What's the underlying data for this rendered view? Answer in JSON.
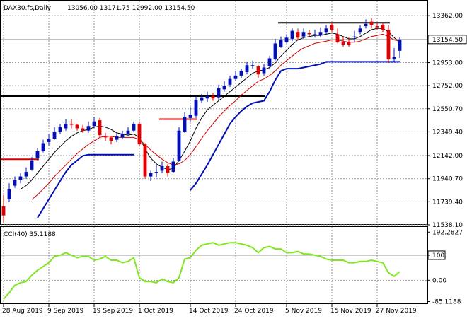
{
  "header": {
    "symbol": "DAX30.fs,Daily",
    "ohlc": "13056.00 13171.75 12992.00 13154.50"
  },
  "chart_data": [
    {
      "type": "candlestick",
      "name": "DAX30.fs,Daily",
      "ylim": [
        11538.1,
        13400
      ],
      "ytick_labels": [
        "13362.00",
        "13154.50",
        "12953.00",
        "12752.00",
        "12550.70",
        "12349.40",
        "12142.00",
        "11940.70",
        "11739.40",
        "11538.10"
      ],
      "yticks": [
        13362.0,
        13154.5,
        12953.0,
        12752.0,
        12550.7,
        12349.4,
        12142.0,
        11940.7,
        11739.4,
        11538.1
      ],
      "current_price": 13154.5,
      "current_price_label": "13154.50",
      "x": [
        "2019-08-28",
        "2019-08-29",
        "2019-08-30",
        "2019-09-02",
        "2019-09-03",
        "2019-09-04",
        "2019-09-05",
        "2019-09-06",
        "2019-09-09",
        "2019-09-10",
        "2019-09-11",
        "2019-09-12",
        "2019-09-13",
        "2019-09-16",
        "2019-09-17",
        "2019-09-18",
        "2019-09-19",
        "2019-09-20",
        "2019-09-23",
        "2019-09-24",
        "2019-09-25",
        "2019-09-26",
        "2019-09-27",
        "2019-09-30",
        "2019-10-01",
        "2019-10-02",
        "2019-10-03",
        "2019-10-04",
        "2019-10-07",
        "2019-10-08",
        "2019-10-09",
        "2019-10-10",
        "2019-10-11",
        "2019-10-14",
        "2019-10-15",
        "2019-10-16",
        "2019-10-17",
        "2019-10-18",
        "2019-10-21",
        "2019-10-22",
        "2019-10-23",
        "2019-10-24",
        "2019-10-25",
        "2019-10-28",
        "2019-10-29",
        "2019-10-30",
        "2019-10-31",
        "2019-11-01",
        "2019-11-04",
        "2019-11-05",
        "2019-11-06",
        "2019-11-07",
        "2019-11-08",
        "2019-11-11",
        "2019-11-12",
        "2019-11-13",
        "2019-11-14",
        "2019-11-15",
        "2019-11-18",
        "2019-11-19",
        "2019-11-20",
        "2019-11-21",
        "2019-11-22",
        "2019-11-25",
        "2019-11-26",
        "2019-11-27",
        "2019-11-28",
        "2019-11-29",
        "2019-12-02",
        "2019-12-03",
        "2019-12-04"
      ],
      "open": [
        11700,
        11760,
        11880,
        11930,
        11960,
        12020,
        12120,
        12180,
        12260,
        12290,
        12350,
        12380,
        12420,
        12410,
        12380,
        12360,
        12400,
        12450,
        12310,
        12300,
        12280,
        12300,
        12330,
        12360,
        12420,
        12240,
        11960,
        11990,
        12010,
        12050,
        12000,
        12100,
        12350,
        12470,
        12490,
        12620,
        12640,
        12660,
        12650,
        12720,
        12760,
        12810,
        12840,
        12870,
        12930,
        12920,
        12860,
        12920,
        12980,
        13090,
        13130,
        13160,
        13220,
        13180,
        13210,
        13200,
        13190,
        13220,
        13280,
        13200,
        13130,
        13130,
        13180,
        13220,
        13270,
        13310,
        13270,
        13280,
        13240,
        12980,
        13056
      ],
      "close": [
        11620,
        11850,
        11930,
        11960,
        12000,
        12100,
        12180,
        12250,
        12290,
        12350,
        12390,
        12420,
        12410,
        12380,
        12360,
        12400,
        12440,
        12320,
        12300,
        12270,
        12310,
        12330,
        12360,
        12420,
        12240,
        11960,
        11990,
        12000,
        12050,
        11990,
        12090,
        12360,
        12480,
        12500,
        12630,
        12650,
        12660,
        12640,
        12730,
        12750,
        12810,
        12840,
        12880,
        12930,
        12930,
        12850,
        12910,
        12990,
        13120,
        13150,
        13170,
        13230,
        13170,
        13220,
        13200,
        13200,
        13220,
        13250,
        13240,
        13130,
        13110,
        13110,
        13180,
        13250,
        13290,
        13280,
        13260,
        13240,
        12980,
        13000,
        13154
      ],
      "high": [
        11800,
        11900,
        11960,
        11990,
        12040,
        12130,
        12210,
        12280,
        12330,
        12390,
        12420,
        12460,
        12460,
        12420,
        12410,
        12440,
        12480,
        12470,
        12340,
        12310,
        12340,
        12360,
        12390,
        12440,
        12440,
        12250,
        12010,
        12060,
        12090,
        12070,
        12120,
        12390,
        12520,
        12560,
        12660,
        12680,
        12700,
        12690,
        12760,
        12790,
        12840,
        12880,
        12900,
        12960,
        12970,
        12930,
        12940,
        13010,
        13160,
        13180,
        13200,
        13250,
        13250,
        13250,
        13240,
        13240,
        13260,
        13280,
        13310,
        13250,
        13180,
        13170,
        13230,
        13280,
        13330,
        13340,
        13300,
        13300,
        13280,
        13080,
        13171
      ],
      "low": [
        11560,
        11740,
        11860,
        11900,
        11940,
        12010,
        12100,
        12170,
        12230,
        12280,
        12330,
        12360,
        12380,
        12360,
        12340,
        12340,
        12380,
        12300,
        12270,
        12240,
        12260,
        12290,
        12320,
        12350,
        12220,
        11940,
        11920,
        11950,
        11990,
        11960,
        11990,
        12090,
        12340,
        12440,
        12470,
        12600,
        12610,
        12620,
        12630,
        12700,
        12740,
        12790,
        12820,
        12850,
        12900,
        12820,
        12840,
        12900,
        12970,
        13080,
        13120,
        13140,
        13150,
        13160,
        13180,
        13170,
        13170,
        13200,
        13220,
        13120,
        13090,
        13090,
        13130,
        13200,
        13250,
        13250,
        13240,
        13220,
        12950,
        12960,
        12992
      ],
      "xtick_labels": [
        "28 Aug 2019",
        "9 Sep 2019",
        "19 Sep 2019",
        "1 Oct 2019",
        "14 Oct 2019",
        "24 Oct 2019",
        "5 Nov 2019",
        "15 Nov 2019",
        "27 Nov 2019"
      ],
      "xtick_index": [
        0,
        8,
        16,
        24,
        33,
        41,
        50,
        58,
        66
      ],
      "series": [
        {
          "kind": "ma_fast",
          "color": "#000000",
          "values": [
            null,
            null,
            null,
            11850,
            11880,
            11930,
            11990,
            12050,
            12110,
            12170,
            12220,
            12270,
            12310,
            12340,
            12360,
            12370,
            12390,
            12400,
            12390,
            12370,
            12340,
            12330,
            12320,
            12330,
            12300,
            12200,
            12120,
            12070,
            12040,
            12020,
            12030,
            12100,
            12180,
            12270,
            12380,
            12470,
            12540,
            12580,
            12620,
            12660,
            12700,
            12740,
            12780,
            12820,
            12860,
            12880,
            12890,
            12910,
            12950,
            13010,
            13060,
            13110,
            13150,
            13170,
            13180,
            13190,
            13190,
            13200,
            13210,
            13200,
            13180,
            13160,
            13160,
            13180,
            13210,
            13240,
            13250,
            13250,
            13220,
            13170,
            13130
          ]
        },
        {
          "kind": "ma_slow",
          "color": "#d40000",
          "values": [
            null,
            null,
            null,
            null,
            null,
            11760,
            11800,
            11850,
            11900,
            11960,
            12010,
            12060,
            12110,
            12160,
            12200,
            12240,
            12270,
            12300,
            12310,
            12310,
            12300,
            12300,
            12300,
            12300,
            12280,
            12240,
            12190,
            12150,
            12110,
            12080,
            12060,
            12070,
            12100,
            12150,
            12220,
            12290,
            12360,
            12420,
            12480,
            12530,
            12580,
            12620,
            12670,
            12710,
            12750,
            12790,
            12810,
            12840,
            12880,
            12930,
            12970,
            13010,
            13050,
            13080,
            13100,
            13120,
            13130,
            13140,
            13150,
            13150,
            13140,
            13130,
            13130,
            13140,
            13160,
            13180,
            13190,
            13200,
            13180,
            13150,
            13140
          ]
        },
        {
          "kind": "channel",
          "color": "#0010b4",
          "values": [
            null,
            null,
            null,
            null,
            null,
            null,
            11600,
            11680,
            11760,
            11840,
            11920,
            12000,
            12060,
            12100,
            12140,
            12150,
            12150,
            12150,
            12150,
            12150,
            12150,
            12150,
            12150,
            12150,
            null,
            null,
            null,
            null,
            null,
            null,
            null,
            null,
            null,
            11840,
            11900,
            11980,
            12060,
            12150,
            12240,
            12330,
            12420,
            12480,
            12530,
            12570,
            12600,
            12610,
            12620,
            12700,
            12800,
            12880,
            12900,
            12900,
            12900,
            12910,
            12920,
            12930,
            12940,
            12960,
            12960,
            12960,
            12960,
            12960,
            12960,
            12960,
            12960,
            12960,
            12960,
            12960,
            12960,
            12960,
            12960
          ]
        }
      ],
      "annotations": [
        {
          "kind": "hline",
          "color": "#000000",
          "value": 12660,
          "x_from": 0,
          "x_to": 46
        },
        {
          "kind": "hline",
          "color": "#000000",
          "value": 13300,
          "x_from": 49,
          "x_to": 68
        },
        {
          "kind": "hline_segment",
          "color": "#d40000",
          "value": 12110,
          "x_from": 0,
          "x_to": 6
        },
        {
          "kind": "hline_segment",
          "color": "#d40000",
          "value": 12460,
          "x_from": 28,
          "x_to": 34
        }
      ]
    },
    {
      "type": "line",
      "name": "CCI(40)",
      "label": "CCI(40) 35.1188",
      "ylim": [
        -95,
        210
      ],
      "ytick_labels": [
        "192.2827",
        "100",
        "0.00",
        "-85.1188"
      ],
      "yticks": [
        192.2827,
        100,
        0,
        -85.1188
      ],
      "level": 100,
      "series": [
        {
          "color": "#80e61e",
          "values": [
            -75,
            -50,
            -20,
            -10,
            -5,
            20,
            40,
            55,
            70,
            95,
            100,
            110,
            100,
            90,
            95,
            95,
            80,
            85,
            95,
            80,
            80,
            70,
            75,
            90,
            10,
            -5,
            -5,
            -10,
            5,
            -5,
            -10,
            10,
            85,
            90,
            120,
            140,
            145,
            150,
            140,
            145,
            150,
            150,
            145,
            140,
            130,
            110,
            130,
            135,
            125,
            125,
            110,
            110,
            115,
            105,
            105,
            100,
            95,
            85,
            80,
            80,
            80,
            70,
            70,
            75,
            75,
            80,
            75,
            70,
            30,
            15,
            35
          ]
        }
      ]
    }
  ]
}
